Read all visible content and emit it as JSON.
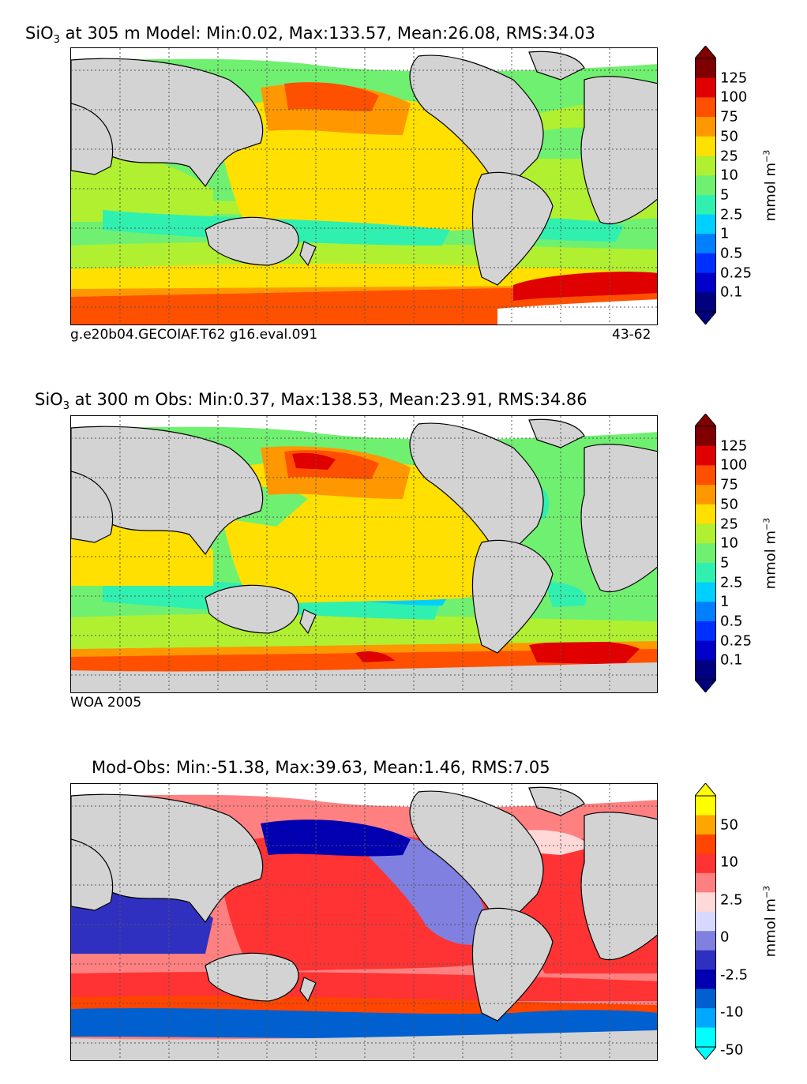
{
  "panels": {
    "model": {
      "title_var": "SiO",
      "title_sub": "3",
      "title_rest": " at 305 m Model: Min:0.02, Max:133.57, Mean:26.08, RMS:34.03",
      "footer_left": "g.e20b04.GECOIAF.T62 g16.eval.091",
      "footer_right": "43-62"
    },
    "obs": {
      "title_var": "SiO",
      "title_sub": "3",
      "title_rest": " at 300 m Obs: Min:0.37, Max:138.53, Mean:23.91, RMS:34.86",
      "footer_left": "WOA 2005"
    },
    "diff": {
      "title": "Mod-Obs: Min:-51.38, Max:39.63, Mean:1.46, RMS:7.05"
    }
  },
  "colorbars": {
    "concentration": {
      "unit": "mmol m",
      "unit_exp": "−3",
      "ticks": [
        "125",
        "100",
        "75",
        "50",
        "25",
        "10",
        "5",
        "2.5",
        "1",
        "0.5",
        "0.25",
        "0.1"
      ],
      "colors": [
        "#800000",
        "#e00000",
        "#ff5000",
        "#ff9800",
        "#ffe000",
        "#b0f030",
        "#70f070",
        "#30f0b0",
        "#00d0ff",
        "#0080ff",
        "#0030ff",
        "#0000c8",
        "#000080"
      ]
    },
    "difference": {
      "unit": "mmol m",
      "unit_exp": "−3",
      "ticks": [
        "50",
        "10",
        "2.5",
        "0",
        "-2.5",
        "-10",
        "-50"
      ],
      "colors": [
        "#ffff00",
        "#ffa500",
        "#ff4500",
        "#ff3333",
        "#ff8080",
        "#ffd8d8",
        "#d8d8ff",
        "#8080e0",
        "#3030c0",
        "#0000b0",
        "#0060d0",
        "#00a8ff",
        "#00ffff"
      ]
    }
  },
  "map": {
    "land_color": "#d3d3d3",
    "ice_color": "#ffffff"
  }
}
